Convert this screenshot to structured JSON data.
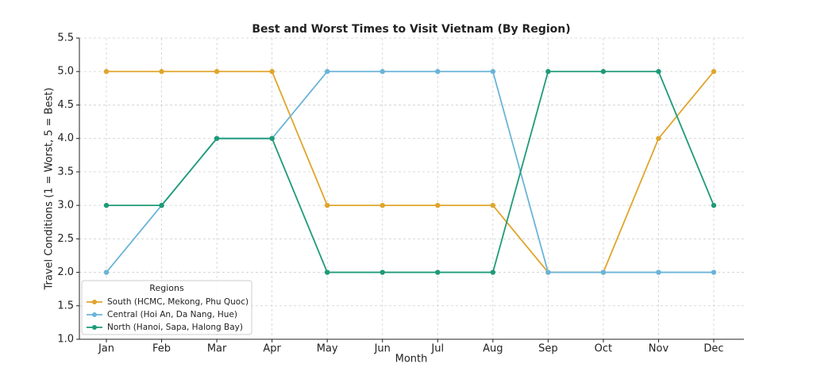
{
  "chart_data": {
    "type": "line",
    "title": "Best and Worst Times to Visit Vietnam (By Region)",
    "xlabel": "Month",
    "ylabel": "Travel Conditions (1 = Worst, 5 = Best)",
    "categories": [
      "Jan",
      "Feb",
      "Mar",
      "Apr",
      "May",
      "Jun",
      "Jul",
      "Aug",
      "Sep",
      "Oct",
      "Nov",
      "Dec"
    ],
    "series": [
      {
        "name": "South (HCMC, Mekong, Phu Quoc)",
        "color": "#e0a52c",
        "values": [
          5,
          5,
          5,
          5,
          3,
          3,
          3,
          3,
          2,
          2,
          4,
          5
        ]
      },
      {
        "name": "Central (Hoi An, Da Nang, Hue)",
        "color": "#6ab4d8",
        "values": [
          2,
          3,
          4,
          4,
          5,
          5,
          5,
          5,
          2,
          2,
          2,
          2
        ]
      },
      {
        "name": "North (Hanoi, Sapa, Halong Bay)",
        "color": "#1f9a78",
        "values": [
          3,
          3,
          4,
          4,
          2,
          2,
          2,
          2,
          5,
          5,
          5,
          3
        ]
      }
    ],
    "ylim": [
      1,
      5.5
    ],
    "yticks": [
      {
        "value": 1,
        "label": "1.0"
      },
      1.5,
      {
        "value": 2,
        "label": "2.0"
      },
      2.5,
      {
        "value": 3,
        "label": "3.0"
      },
      3.5,
      {
        "value": 4,
        "label": "4.0"
      },
      4.5,
      {
        "value": 5,
        "label": "5.0"
      },
      5.5
    ],
    "grid": true,
    "legend_title": "Regions",
    "legend": "lower left"
  }
}
